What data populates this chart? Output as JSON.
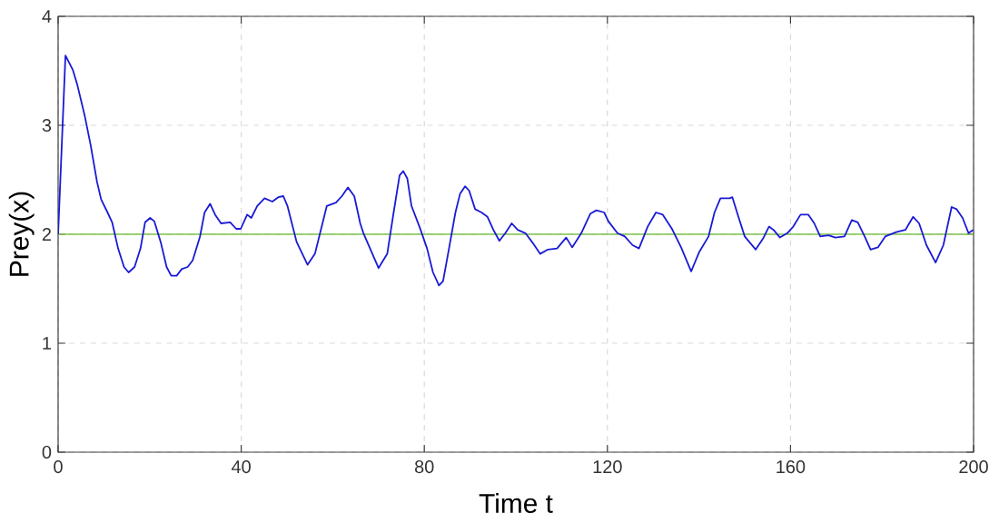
{
  "chart_data": {
    "type": "line",
    "xlabel": "Time t",
    "ylabel": "Prey(x)",
    "x": [
      0,
      1.6,
      3.2,
      4.2,
      5.8,
      7.1,
      8.5,
      9.4,
      10.8,
      11.8,
      13.1,
      14.4,
      15.4,
      16.7,
      18.0,
      19.0,
      20.1,
      21.0,
      22.4,
      23.7,
      24.7,
      25.9,
      27.0,
      28.3,
      29.4,
      31.0,
      32.0,
      33.2,
      34.3,
      35.6,
      37.6,
      38.9,
      39.9,
      41.3,
      42.2,
      43.5,
      45.1,
      46.8,
      48.1,
      49.2,
      50.1,
      52.1,
      54.5,
      56.1,
      57.4,
      58.7,
      60.7,
      62.0,
      63.3,
      64.7,
      66.0,
      66.7,
      70.0,
      71.9,
      73.3,
      74.6,
      75.4,
      76.3,
      77.2,
      79.2,
      80.6,
      81.9,
      83.2,
      84.1,
      85.4,
      86.8,
      87.8,
      88.9,
      89.8,
      91.1,
      92.5,
      93.8,
      95.1,
      96.4,
      97.7,
      99.1,
      100.4,
      102.1,
      103.7,
      105.3,
      107.0,
      109.0,
      111.0,
      112.3,
      114.3,
      116.3,
      117.6,
      119.3,
      120.2,
      122.2,
      123.8,
      125.5,
      126.9,
      128.8,
      130.6,
      132.1,
      134.1,
      136.1,
      138.3,
      140.1,
      142.1,
      143.4,
      144.7,
      146.7,
      147.3,
      148.7,
      150.0,
      152.4,
      154.0,
      155.3,
      156.3,
      157.7,
      159.3,
      160.6,
      162.2,
      163.9,
      165.2,
      166.5,
      168.3,
      169.8,
      171.8,
      173.4,
      174.7,
      176.2,
      177.5,
      179.1,
      180.7,
      183.1,
      185.1,
      186.8,
      188.1,
      189.7,
      191.7,
      193.4,
      195.2,
      196.3,
      197.6,
      198.9,
      199.9
    ],
    "values": [
      2.0,
      3.64,
      3.51,
      3.37,
      3.09,
      2.82,
      2.48,
      2.32,
      2.2,
      2.11,
      1.87,
      1.7,
      1.65,
      1.7,
      1.87,
      2.11,
      2.15,
      2.12,
      1.93,
      1.7,
      1.62,
      1.62,
      1.68,
      1.7,
      1.76,
      1.98,
      2.2,
      2.28,
      2.18,
      2.1,
      2.11,
      2.05,
      2.05,
      2.18,
      2.15,
      2.26,
      2.33,
      2.3,
      2.34,
      2.35,
      2.26,
      1.93,
      1.72,
      1.82,
      2.04,
      2.26,
      2.29,
      2.35,
      2.43,
      2.35,
      2.1,
      2.01,
      1.69,
      1.82,
      2.2,
      2.54,
      2.58,
      2.51,
      2.26,
      2.04,
      1.87,
      1.65,
      1.53,
      1.57,
      1.87,
      2.2,
      2.37,
      2.44,
      2.4,
      2.23,
      2.2,
      2.16,
      2.04,
      1.94,
      2.01,
      2.1,
      2.04,
      2.01,
      1.92,
      1.82,
      1.86,
      1.87,
      1.97,
      1.88,
      2.01,
      2.19,
      2.22,
      2.2,
      2.12,
      2.01,
      1.98,
      1.9,
      1.87,
      2.07,
      2.2,
      2.18,
      2.05,
      1.88,
      1.66,
      1.84,
      1.98,
      2.2,
      2.33,
      2.33,
      2.34,
      2.15,
      1.98,
      1.86,
      1.96,
      2.07,
      2.04,
      1.97,
      2.01,
      2.07,
      2.18,
      2.18,
      2.1,
      1.98,
      1.99,
      1.97,
      1.98,
      2.13,
      2.11,
      1.98,
      1.86,
      1.88,
      1.98,
      2.02,
      2.04,
      2.16,
      2.1,
      1.9,
      1.74,
      1.9,
      2.25,
      2.23,
      2.15,
      2.01,
      2.04
    ],
    "color": "#1a1ad6",
    "xlim": [
      0,
      200
    ],
    "ylim": [
      0,
      4
    ],
    "xticks": [
      0,
      40,
      80,
      120,
      160,
      200
    ],
    "yticks": [
      0,
      1,
      2,
      3,
      4
    ],
    "grid": true,
    "ref_lines": [
      {
        "axis": "y",
        "value": 2,
        "color": "#7cc24a"
      }
    ]
  }
}
